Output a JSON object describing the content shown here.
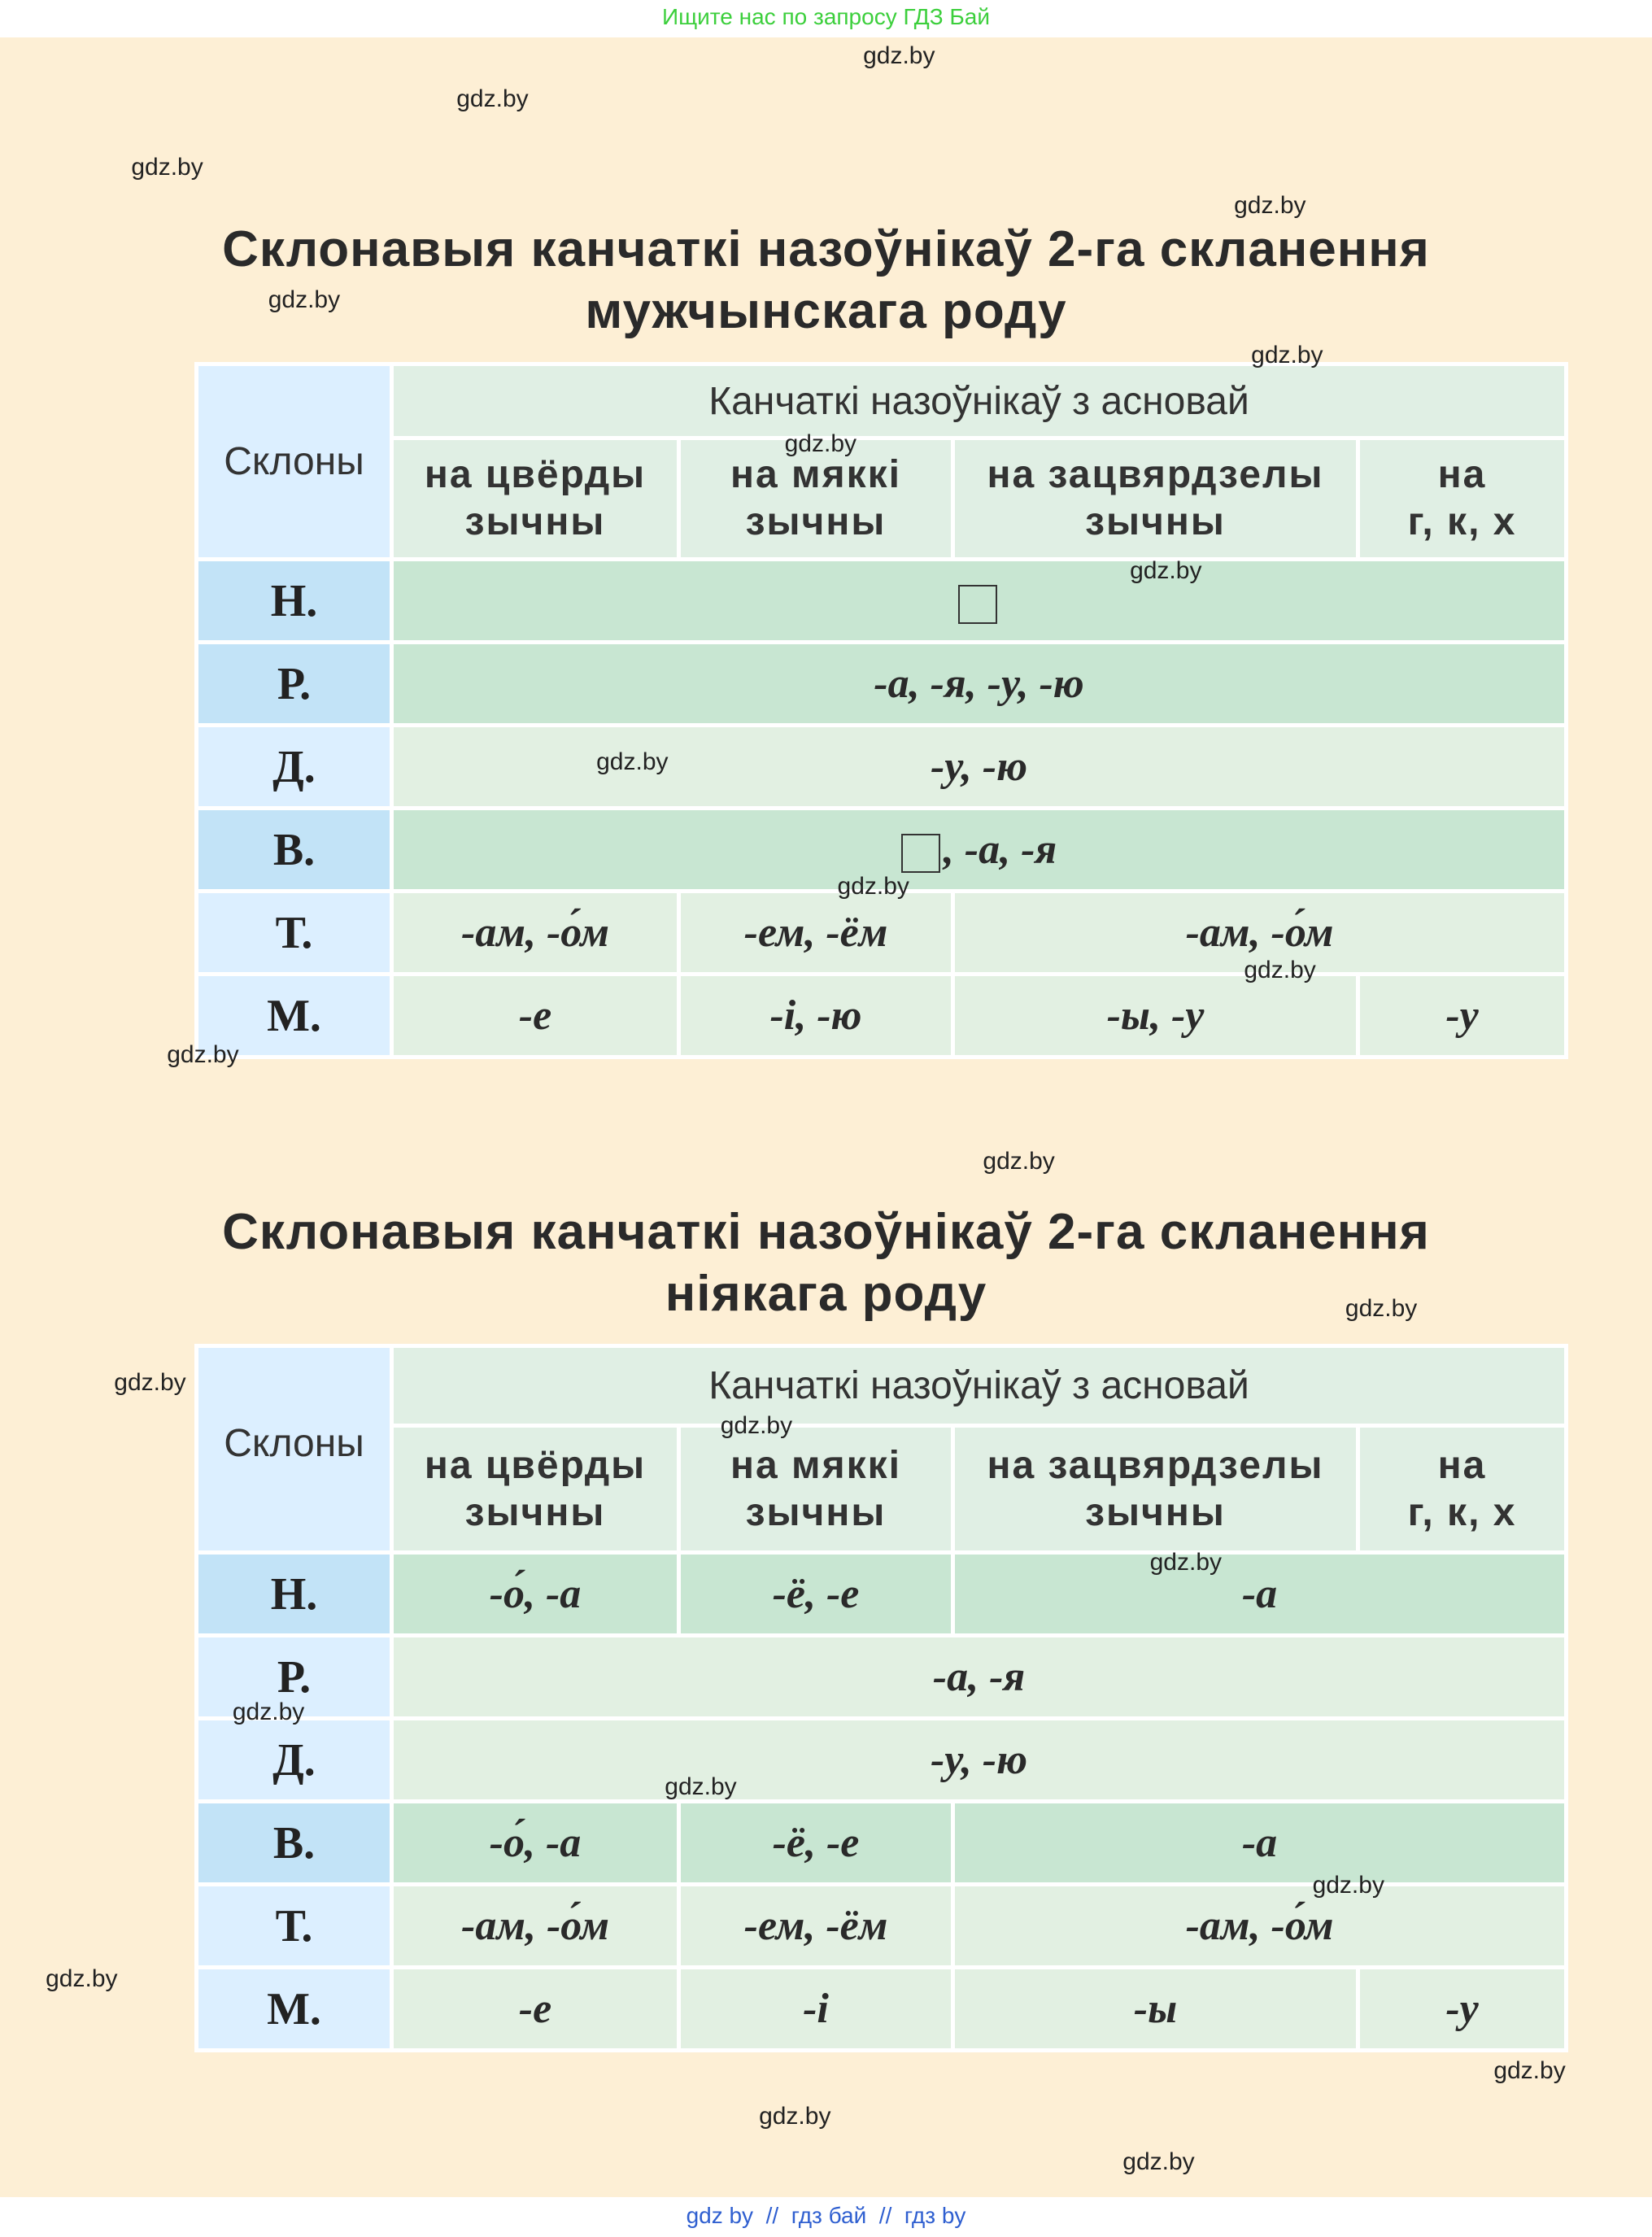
{
  "top_banner": "Ищите нас по запросу ГДЗ Бай",
  "bottom_banner": "gdz by  //  гдз бай  //  гдз by",
  "watermarks": [
    "gdz.by",
    "gdz.by",
    "gdz.by",
    "gdz.by",
    "gdz.by",
    "gdz.by",
    "gdz.by",
    "gdz.by",
    "gdz.by",
    "gdz.by",
    "gdz.by",
    "gdz.by",
    "gdz.by",
    "gdz.by",
    "gdz.by",
    "gdz.by",
    "gdz.by",
    "gdz.by",
    "gdz.by",
    "gdz.by",
    "gdz.by",
    "gdz.by",
    "gdz.by",
    "gdz.by"
  ],
  "tables": [
    {
      "title": "Склонавыя канчаткі назоўнікаў 2-га скланення\nмужчынскага роду",
      "corner": "Склоны",
      "group": "Канчаткі назоўнікаў з асновай",
      "columns": [
        "на цвёрды\nзычны",
        "на мяккі\nзычны",
        "на зацвярдзелы\nзычны",
        "на\nг, к, х"
      ],
      "rows": [
        {
          "case": "Н.",
          "cells": [
            {
              "colspan": 4,
              "box": true
            }
          ]
        },
        {
          "case": "Р.",
          "cells": [
            {
              "text": "-а, -я, -у, -ю",
              "colspan": 4
            }
          ]
        },
        {
          "case": "Д.",
          "cells": [
            {
              "text": "-у, -ю",
              "colspan": 4
            }
          ]
        },
        {
          "case": "В.",
          "cells": [
            {
              "text": ", -а, -я",
              "colspan": 4,
              "box": true
            }
          ]
        },
        {
          "case": "Т.",
          "cells": [
            {
              "text": "-ам, -о́м",
              "colspan": 1
            },
            {
              "text": "-ем, -ём",
              "colspan": 1
            },
            {
              "text": "-ам, -о́м",
              "colspan": 2
            }
          ]
        },
        {
          "case": "М.",
          "cells": [
            {
              "text": "-е",
              "colspan": 1
            },
            {
              "text": "-і, -ю",
              "colspan": 1
            },
            {
              "text": "-ы, -у",
              "colspan": 1
            },
            {
              "text": "-у",
              "colspan": 1
            }
          ]
        }
      ]
    },
    {
      "title": "Склонавыя канчаткі назоўнікаў 2-га скланення\nніякага роду",
      "corner": "Склоны",
      "group": "Канчаткі назоўнікаў з асновай",
      "columns": [
        "на цвёрды\nзычны",
        "на мяккі\nзычны",
        "на зацвярдзелы\nзычны",
        "на\nг, к, х"
      ],
      "rows": [
        {
          "case": "Н.",
          "cells": [
            {
              "text": "-о́, -а",
              "colspan": 1
            },
            {
              "text": "-ё, -е",
              "colspan": 1
            },
            {
              "text": "-а",
              "colspan": 2
            }
          ]
        },
        {
          "case": "Р.",
          "cells": [
            {
              "text": "-а, -я",
              "colspan": 4
            }
          ]
        },
        {
          "case": "Д.",
          "cells": [
            {
              "text": "-у, -ю",
              "colspan": 4
            }
          ]
        },
        {
          "case": "В.",
          "cells": [
            {
              "text": "-о́, -а",
              "colspan": 1
            },
            {
              "text": "-ё, -е",
              "colspan": 1
            },
            {
              "text": "-а",
              "colspan": 2
            }
          ]
        },
        {
          "case": "Т.",
          "cells": [
            {
              "text": "-ам, -о́м",
              "colspan": 1
            },
            {
              "text": "-ем, -ём",
              "colspan": 1
            },
            {
              "text": "-ам, -о́м",
              "colspan": 2
            }
          ]
        },
        {
          "case": "М.",
          "cells": [
            {
              "text": "-е",
              "colspan": 1
            },
            {
              "text": "-і",
              "colspan": 1
            },
            {
              "text": "-ы",
              "colspan": 1
            },
            {
              "text": "-у",
              "colspan": 1
            }
          ]
        }
      ]
    }
  ]
}
